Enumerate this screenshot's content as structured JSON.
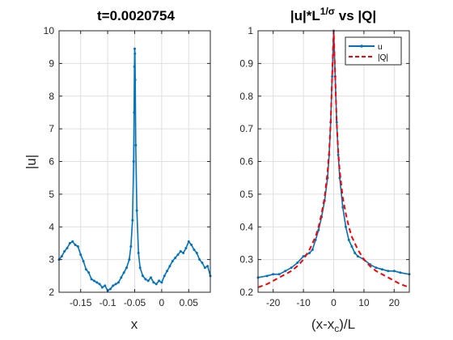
{
  "chart_data": [
    {
      "type": "line",
      "title": "t=0.0020754",
      "xlabel": "x",
      "ylabel": "|u|",
      "xlim": [
        -0.19,
        0.09
      ],
      "ylim": [
        2,
        10
      ],
      "xticks": [
        -0.15,
        -0.1,
        -0.05,
        0,
        0.05
      ],
      "xtick_labels": [
        "-0.15",
        "-0.1",
        "-0.05",
        "0",
        "0.05"
      ],
      "yticks": [
        2,
        3,
        4,
        5,
        6,
        7,
        8,
        9,
        10
      ],
      "ytick_labels": [
        "2",
        "3",
        "4",
        "5",
        "6",
        "7",
        "8",
        "9",
        "10"
      ],
      "grid": true,
      "colors": {
        "series": "#0072BD"
      },
      "series": [
        {
          "marker": "dot",
          "x": [
            -0.19,
            -0.185,
            -0.18,
            -0.175,
            -0.17,
            -0.165,
            -0.16,
            -0.155,
            -0.15,
            -0.145,
            -0.14,
            -0.135,
            -0.13,
            -0.125,
            -0.12,
            -0.115,
            -0.11,
            -0.105,
            -0.1,
            -0.095,
            -0.09,
            -0.085,
            -0.08,
            -0.075,
            -0.07,
            -0.065,
            -0.06,
            -0.057,
            -0.054,
            -0.052,
            -0.051,
            -0.0505,
            -0.05,
            -0.0495,
            -0.049,
            -0.048,
            -0.046,
            -0.043,
            -0.04,
            -0.035,
            -0.03,
            -0.025,
            -0.02,
            -0.015,
            -0.01,
            -0.005,
            0,
            0.005,
            0.01,
            0.015,
            0.02,
            0.025,
            0.03,
            0.035,
            0.04,
            0.045,
            0.05,
            0.055,
            0.06,
            0.065,
            0.07,
            0.075,
            0.08,
            0.085,
            0.09
          ],
          "y": [
            3.0,
            3.1,
            3.25,
            3.35,
            3.5,
            3.55,
            3.45,
            3.4,
            3.15,
            2.95,
            2.7,
            2.6,
            2.4,
            2.35,
            2.3,
            2.25,
            2.15,
            2.2,
            2.05,
            2.1,
            2.2,
            2.25,
            2.3,
            2.45,
            2.6,
            2.75,
            3.0,
            3.4,
            4.2,
            6.0,
            7.5,
            8.9,
            9.45,
            9.3,
            8.5,
            6.5,
            4.5,
            3.2,
            2.75,
            2.5,
            2.4,
            2.35,
            2.45,
            2.3,
            2.25,
            2.35,
            2.3,
            2.5,
            2.65,
            2.8,
            2.95,
            3.05,
            3.15,
            3.25,
            3.2,
            3.35,
            3.55,
            3.45,
            3.3,
            3.2,
            3.0,
            2.9,
            2.75,
            2.8,
            2.5
          ]
        }
      ]
    },
    {
      "type": "line",
      "title": "|u|*L^{1/σ} vs |Q|",
      "title_parts": {
        "base": "|u|*L",
        "sup": "1/σ",
        "rest": " vs |Q|"
      },
      "xlabel": "(x-x_c)/L",
      "xlabel_parts": {
        "pre": "(x-x",
        "sub": "c",
        "post": ")/L"
      },
      "ylabel": "",
      "xlim": [
        -25,
        25
      ],
      "ylim": [
        0.2,
        1.0
      ],
      "xticks": [
        -20,
        -10,
        0,
        10,
        20
      ],
      "xtick_labels": [
        "-20",
        "-10",
        "0",
        "10",
        "20"
      ],
      "yticks": [
        0.2,
        0.3,
        0.4,
        0.5,
        0.6,
        0.7,
        0.8,
        0.9,
        1.0
      ],
      "ytick_labels": [
        "0.2",
        "0.3",
        "0.4",
        "0.5",
        "0.6",
        "0.7",
        "0.8",
        "0.9",
        "1"
      ],
      "grid": true,
      "legend_position": "top-right",
      "colors": {
        "u": "#0072BD",
        "Q": "#FF0000"
      },
      "series": [
        {
          "name": "u",
          "marker": "dot",
          "x": [
            -25,
            -22,
            -20,
            -18,
            -16,
            -14,
            -12,
            -10,
            -8,
            -7,
            -6,
            -5,
            -4,
            -3,
            -2,
            -1.5,
            -1,
            -0.5,
            0,
            0.5,
            1,
            1.5,
            2,
            3,
            4,
            5,
            6,
            7,
            8,
            10,
            12,
            14,
            16,
            18,
            20,
            22,
            25
          ],
          "y": [
            0.245,
            0.25,
            0.255,
            0.255,
            0.265,
            0.275,
            0.29,
            0.31,
            0.32,
            0.33,
            0.36,
            0.39,
            0.43,
            0.48,
            0.55,
            0.62,
            0.72,
            0.86,
            1.0,
            0.86,
            0.72,
            0.62,
            0.55,
            0.46,
            0.4,
            0.36,
            0.34,
            0.32,
            0.31,
            0.3,
            0.285,
            0.275,
            0.27,
            0.265,
            0.265,
            0.26,
            0.255
          ]
        },
        {
          "name": "|Q|",
          "style": "dashed",
          "x": [
            -25,
            -22,
            -20,
            -18,
            -16,
            -14,
            -12,
            -10,
            -8,
            -6,
            -5,
            -4,
            -3,
            -2,
            -1.5,
            -1,
            -0.5,
            0,
            0.5,
            1,
            1.5,
            2,
            3,
            4,
            5,
            6,
            8,
            10,
            12,
            14,
            16,
            18,
            20,
            22,
            25
          ],
          "y": [
            0.215,
            0.225,
            0.235,
            0.245,
            0.255,
            0.265,
            0.28,
            0.3,
            0.33,
            0.37,
            0.4,
            0.44,
            0.49,
            0.57,
            0.63,
            0.72,
            0.86,
            1.0,
            0.86,
            0.72,
            0.63,
            0.57,
            0.49,
            0.44,
            0.4,
            0.37,
            0.33,
            0.3,
            0.28,
            0.265,
            0.255,
            0.245,
            0.235,
            0.225,
            0.215
          ]
        }
      ]
    }
  ]
}
